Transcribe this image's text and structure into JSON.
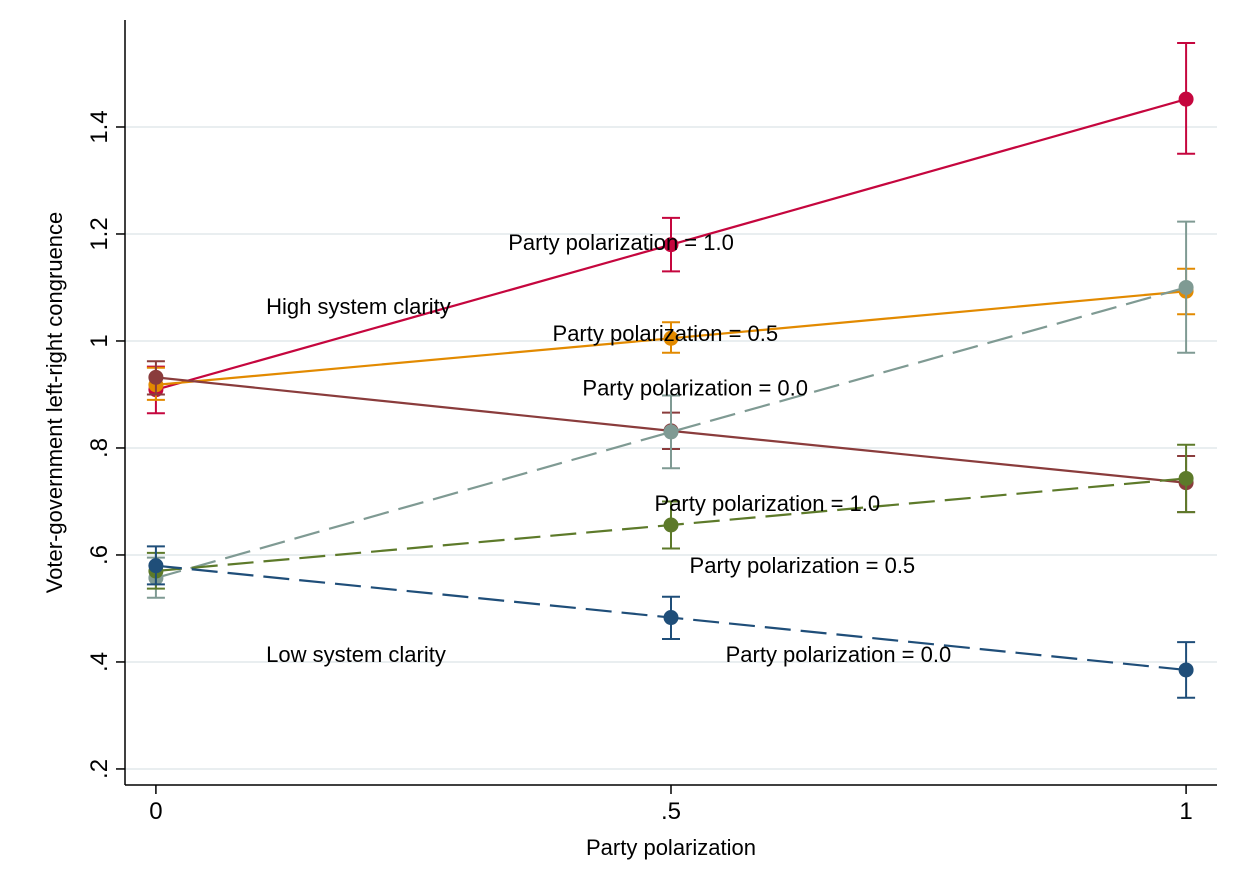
{
  "chart_data": {
    "type": "line",
    "xlabel": "Party polarization",
    "ylabel": "Voter-government left-right congruence",
    "x": [
      0,
      0.5,
      1
    ],
    "x_tick_labels": [
      "0",
      ".5",
      "1"
    ],
    "y_ticks": [
      0.2,
      0.4,
      0.6,
      0.8,
      1.0,
      1.2,
      1.4
    ],
    "y_tick_labels": [
      ".2",
      ".4",
      ".6",
      ".8",
      "1",
      "1.2",
      "1.4"
    ],
    "xlim": [
      -0.03,
      1.03
    ],
    "ylim": [
      0.17,
      1.6
    ],
    "grid": "horizontal",
    "series": [
      {
        "color": "#c5063e",
        "dash": "solid",
        "values": [
          0.909,
          1.18,
          1.452
        ],
        "ci_low": [
          0.865,
          1.13,
          1.35
        ],
        "ci_high": [
          0.952,
          1.23,
          1.557
        ]
      },
      {
        "color": "#e28a00",
        "dash": "solid",
        "values": [
          0.918,
          1.005,
          1.093
        ],
        "ci_low": [
          0.89,
          0.978,
          1.05
        ],
        "ci_high": [
          0.95,
          1.035,
          1.135
        ]
      },
      {
        "color": "#8a3c3c",
        "dash": "solid",
        "values": [
          0.932,
          0.832,
          0.735
        ],
        "ci_low": [
          0.9,
          0.798,
          0.68
        ],
        "ci_high": [
          0.962,
          0.866,
          0.785
        ]
      },
      {
        "color": "#7f9a93",
        "dash": "dash",
        "values": [
          0.557,
          0.83,
          1.1
        ],
        "ci_low": [
          0.52,
          0.762,
          0.978
        ],
        "ci_high": [
          0.595,
          0.898,
          1.223
        ]
      },
      {
        "color": "#5d7a2a",
        "dash": "dash",
        "values": [
          0.57,
          0.656,
          0.743
        ],
        "ci_low": [
          0.537,
          0.612,
          0.68
        ],
        "ci_high": [
          0.604,
          0.7,
          0.806
        ]
      },
      {
        "color": "#1f4e79",
        "dash": "dash",
        "values": [
          0.58,
          0.483,
          0.385
        ],
        "ci_low": [
          0.545,
          0.443,
          0.333
        ],
        "ci_high": [
          0.616,
          0.522,
          0.437
        ]
      }
    ],
    "annotations": [
      {
        "text": "Party polarization = 1.0",
        "x": 0.342,
        "y": 1.185
      },
      {
        "text": "High system clarity",
        "x": 0.107,
        "y": 1.065
      },
      {
        "text": "Party polarization = 0.5",
        "x": 0.385,
        "y": 1.015
      },
      {
        "text": "Party polarization = 0.0",
        "x": 0.414,
        "y": 0.913
      },
      {
        "text": "Party polarization = 1.0",
        "x": 0.484,
        "y": 0.697
      },
      {
        "text": "Party polarization = 0.5",
        "x": 0.518,
        "y": 0.581
      },
      {
        "text": "Party polarization = 0.0",
        "x": 0.553,
        "y": 0.415
      },
      {
        "text": "Low system clarity",
        "x": 0.107,
        "y": 0.415
      }
    ]
  }
}
